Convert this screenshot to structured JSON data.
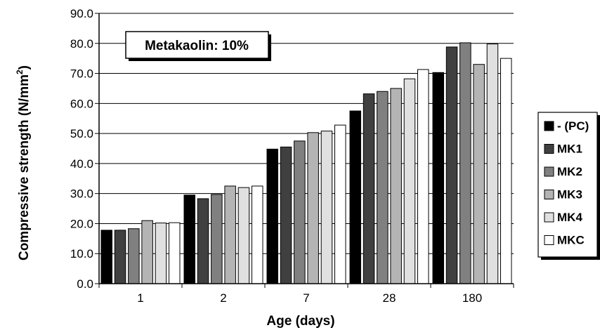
{
  "chart_data": {
    "type": "bar",
    "title": "",
    "xlabel": "Age (days)",
    "ylabel_main": "Compressive strength (N/mm",
    "ylabel_sup": "2",
    "ylabel_close": ")",
    "ylim": [
      0,
      90
    ],
    "yticks": [
      0,
      10,
      20,
      30,
      40,
      50,
      60,
      70,
      80,
      90
    ],
    "ytick_labels": [
      "0.0",
      "10.0",
      "20.0",
      "30.0",
      "40.0",
      "50.0",
      "60.0",
      "70.0",
      "80.0",
      "90.0"
    ],
    "grid": true,
    "legend_position": "right",
    "annotation": "Metakaolin: 10%",
    "categories": [
      "1",
      "2",
      "7",
      "28",
      "180"
    ],
    "series": [
      {
        "name": "- (PC)",
        "color": "#000000",
        "values": [
          17.8,
          29.5,
          44.8,
          57.5,
          70.3
        ]
      },
      {
        "name": "MK1",
        "color": "#404040",
        "values": [
          17.8,
          28.3,
          45.5,
          63.2,
          78.8
        ]
      },
      {
        "name": "MK2",
        "color": "#808080",
        "values": [
          18.3,
          29.7,
          47.5,
          64.0,
          80.2
        ]
      },
      {
        "name": "MK3",
        "color": "#b4b4b4",
        "values": [
          21.0,
          32.5,
          50.3,
          65.0,
          73.0
        ]
      },
      {
        "name": "MK4",
        "color": "#e0e0e0",
        "values": [
          20.2,
          32.0,
          50.8,
          68.2,
          79.8
        ]
      },
      {
        "name": "MKC",
        "color": "#ffffff",
        "values": [
          20.3,
          32.5,
          52.8,
          71.3,
          75.0
        ]
      }
    ]
  }
}
